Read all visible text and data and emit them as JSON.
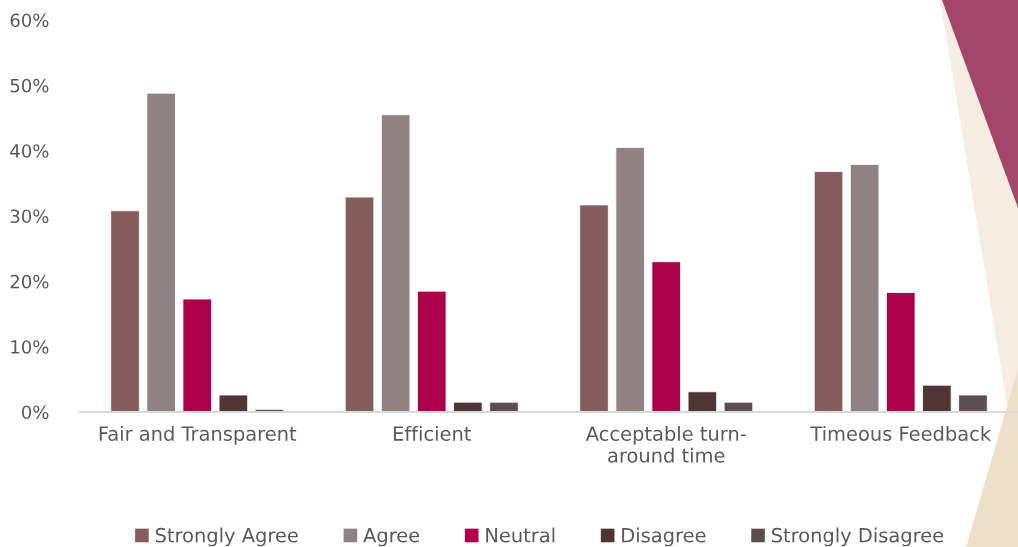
{
  "chart_data": {
    "type": "bar",
    "categories": [
      "Fair and Transparent",
      "Efficient",
      "Acceptable turn-\naround time",
      "Timeous Feedback"
    ],
    "series": [
      {
        "name": "Strongly Agree",
        "color": "#845c5c",
        "values": [
          30.8,
          32.9,
          31.7,
          36.8
        ]
      },
      {
        "name": "Agree",
        "color": "#908282",
        "values": [
          48.8,
          45.5,
          40.5,
          37.9
        ]
      },
      {
        "name": "Neutral",
        "color": "#ad004a",
        "values": [
          17.3,
          18.5,
          23.0,
          18.3
        ]
      },
      {
        "name": "Disagree",
        "color": "#503536",
        "values": [
          2.6,
          1.5,
          3.1,
          4.1
        ]
      },
      {
        "name": "Strongly Disagree",
        "color": "#5b4e50",
        "values": [
          0.4,
          1.5,
          1.5,
          2.6
        ]
      }
    ],
    "ylim": [
      0,
      60
    ],
    "yticks": [
      {
        "value": 0,
        "label": "0%"
      },
      {
        "value": 10,
        "label": "10%"
      },
      {
        "value": 20,
        "label": "20%"
      },
      {
        "value": 30,
        "label": "30%"
      },
      {
        "value": 40,
        "label": "40%"
      },
      {
        "value": 50,
        "label": "50%"
      },
      {
        "value": 60,
        "label": "60%"
      }
    ],
    "legend": "bottom"
  }
}
